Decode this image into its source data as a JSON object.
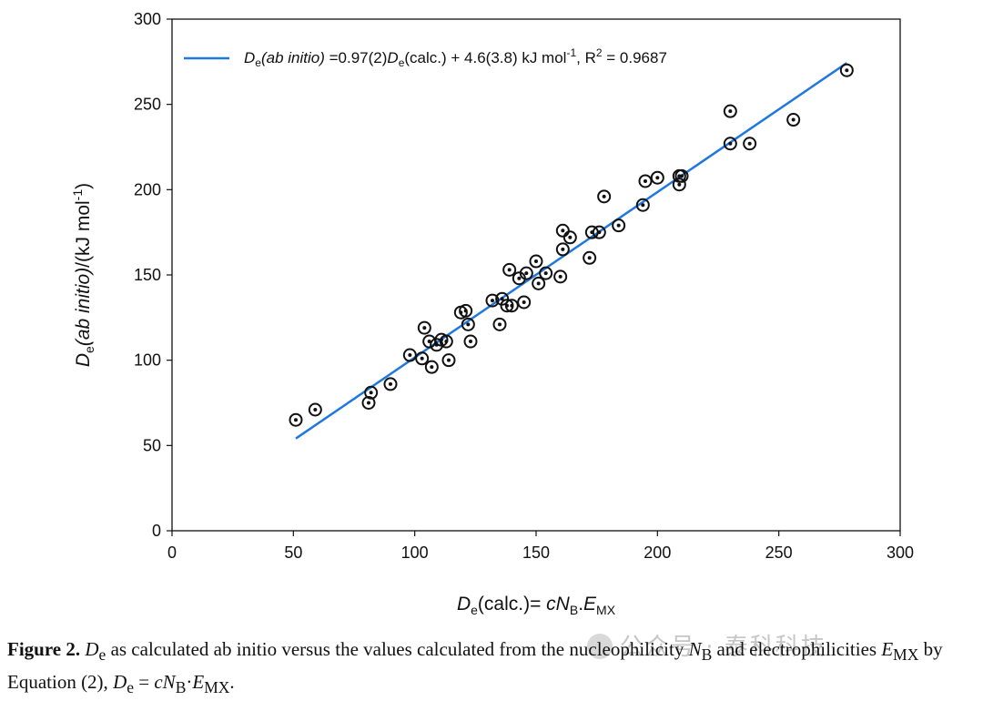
{
  "chart_data": {
    "type": "scatter",
    "xlabel": {
      "main": "D",
      "sub": "e",
      "rest": "(calc.)= ",
      "italic": "cN",
      "sub2": "B",
      "dot": ".",
      "italic2": "E",
      "sub3": "MX"
    },
    "ylabel": {
      "main": "D",
      "sub": "e",
      "italic": "(ab initio)",
      "rest": "/(kJ mol",
      "sup": "-1",
      "end": ")"
    },
    "xlim": [
      0,
      300
    ],
    "ylim": [
      0,
      300
    ],
    "x_ticks": [
      "0",
      "50",
      "100",
      "150",
      "200",
      "250",
      "300"
    ],
    "y_ticks": [
      "0",
      "50",
      "100",
      "150",
      "200",
      "250",
      "300"
    ],
    "grid": false,
    "legend_position": "top-left",
    "legend": {
      "d": "D",
      "e": "e",
      "abinitio": "(ab initio)",
      "part1": " =0.97(2)",
      "d2": "D",
      "e2": "e",
      "part2": "(calc.) + 4.6(3.8) kJ mol",
      "sup": "-1",
      "part3": ",  R",
      "sup2": "2",
      "part4": " = 0.9687"
    },
    "fit_line": {
      "slope": 0.97,
      "intercept": 4.6,
      "x_range": [
        51,
        278
      ],
      "color": "#1f78e0"
    },
    "points": [
      [
        51,
        65
      ],
      [
        59,
        71
      ],
      [
        81,
        75
      ],
      [
        82,
        81
      ],
      [
        90,
        86
      ],
      [
        98,
        103
      ],
      [
        103,
        101
      ],
      [
        104,
        119
      ],
      [
        106,
        111
      ],
      [
        107,
        96
      ],
      [
        109,
        109
      ],
      [
        111,
        112
      ],
      [
        113,
        111
      ],
      [
        114,
        100
      ],
      [
        119,
        128
      ],
      [
        121,
        129
      ],
      [
        122,
        121
      ],
      [
        123,
        111
      ],
      [
        132,
        135
      ],
      [
        135,
        121
      ],
      [
        136,
        136
      ],
      [
        138,
        132
      ],
      [
        139,
        153
      ],
      [
        140,
        132
      ],
      [
        143,
        148
      ],
      [
        145,
        134
      ],
      [
        146,
        151
      ],
      [
        150,
        158
      ],
      [
        151,
        145
      ],
      [
        154,
        151
      ],
      [
        160,
        149
      ],
      [
        161,
        165
      ],
      [
        161,
        176
      ],
      [
        164,
        172
      ],
      [
        172,
        160
      ],
      [
        173,
        175
      ],
      [
        176,
        175
      ],
      [
        178,
        196
      ],
      [
        184,
        179
      ],
      [
        194,
        191
      ],
      [
        195,
        205
      ],
      [
        200,
        207
      ],
      [
        209,
        208
      ],
      [
        209,
        203
      ],
      [
        210,
        208
      ],
      [
        230,
        246
      ],
      [
        230,
        227
      ],
      [
        238,
        227
      ],
      [
        256,
        241
      ],
      [
        278,
        270
      ]
    ]
  },
  "caption": {
    "label": "Figure 2.",
    "d1": "D",
    "e1": "e",
    "text1": " as calculated ab initio versus the values calculated from the nucleophilicity ",
    "nb": "N",
    "nbsub": "B",
    "text2": " and electrophilicities ",
    "emx": "E",
    "emxsub": "MX",
    "text3": " by Equation (2), ",
    "d2": "D",
    "e2": "e",
    "eq": " = ",
    "c": "cN",
    "csub": "B",
    "dot": "·",
    "e3": "E",
    "e3sub": "MX",
    "end": "."
  },
  "watermark": "公众号 · 泰科科技"
}
